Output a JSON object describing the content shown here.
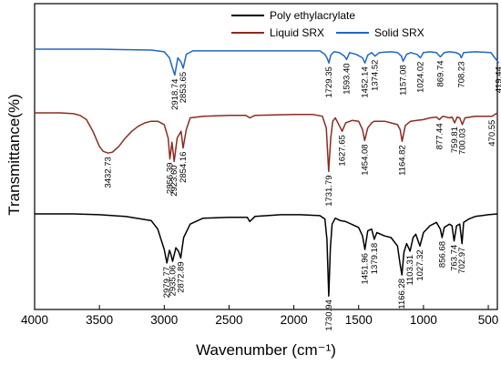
{
  "chart_data": {
    "type": "line",
    "xlabel": "Wavenumber (cm⁻¹)",
    "ylabel": "Transmittance(%)",
    "xlim": [
      4000,
      430
    ],
    "x_reversed": true,
    "x_ticks": [
      4000,
      3500,
      3000,
      2500,
      2000,
      1500,
      1000,
      500
    ],
    "y_tick_labels": false,
    "grid": false,
    "legend_position": "top",
    "series": [
      {
        "name": "Poly ethylacrylate",
        "color": "#000000",
        "x": [
          4000,
          3700,
          3500,
          3300,
          3100,
          3050,
          3000,
          2979.77,
          2960,
          2950,
          2935.06,
          2910,
          2890,
          2872.89,
          2850,
          2800,
          2700,
          2500,
          2360,
          2340,
          2300,
          2100,
          1950,
          1800,
          1760,
          1745,
          1730.94,
          1718,
          1705,
          1680,
          1640,
          1600,
          1500,
          1470,
          1451.96,
          1430,
          1400,
          1379.18,
          1360,
          1300,
          1250,
          1200,
          1180,
          1166.28,
          1150,
          1130,
          1103.31,
          1080,
          1060,
          1027.32,
          1000,
          950,
          900,
          870,
          856.68,
          840,
          800,
          780,
          763.74,
          745,
          720,
          702.97,
          690,
          650,
          600,
          550,
          500,
          430
        ],
        "y": [
          0,
          0,
          1,
          3,
          8,
          18,
          42,
          58,
          43,
          47,
          56,
          40,
          44,
          52,
          28,
          12,
          5,
          4,
          4,
          9,
          3,
          1,
          1,
          2,
          6,
          30,
          97,
          40,
          12,
          5,
          8,
          9,
          16,
          26,
          42,
          20,
          18,
          30,
          22,
          26,
          28,
          38,
          60,
          72,
          45,
          35,
          44,
          28,
          24,
          38,
          22,
          14,
          10,
          18,
          28,
          16,
          12,
          14,
          32,
          14,
          12,
          35,
          10,
          6,
          3,
          2,
          1,
          0
        ],
        "labels": [
          {
            "x": 2979.77,
            "text": "2979.77"
          },
          {
            "x": 2935.06,
            "text": "2935.06"
          },
          {
            "x": 2872.89,
            "text": "2872.89"
          },
          {
            "x": 1730.94,
            "text": "1730.94"
          },
          {
            "x": 1451.96,
            "text": "1451.96"
          },
          {
            "x": 1379.18,
            "text": "1379.18"
          },
          {
            "x": 1166.28,
            "text": "1166.28"
          },
          {
            "x": 1103.31,
            "text": "1103.31"
          },
          {
            "x": 1027.32,
            "text": "1027.32"
          },
          {
            "x": 856.68,
            "text": "856.68"
          },
          {
            "x": 763.74,
            "text": "763.74"
          },
          {
            "x": 702.97,
            "text": "702.97"
          }
        ]
      },
      {
        "name": "Liquid SRX",
        "color": "#8b2c22",
        "x": [
          4000,
          3800,
          3700,
          3650,
          3600,
          3550,
          3500,
          3470,
          3432.73,
          3400,
          3350,
          3300,
          3250,
          3200,
          3150,
          3100,
          3050,
          3000,
          2970,
          2956.39,
          2940,
          2923.6,
          2900,
          2870,
          2854.16,
          2830,
          2800,
          2700,
          2500,
          2370,
          2340,
          2300,
          2000,
          1850,
          1780,
          1750,
          1731.79,
          1715,
          1700,
          1680,
          1650,
          1627.65,
          1600,
          1550,
          1500,
          1470,
          1454.08,
          1430,
          1400,
          1380,
          1300,
          1250,
          1200,
          1180,
          1164.82,
          1140,
          1100,
          1050,
          1000,
          950,
          900,
          877.44,
          850,
          800,
          780,
          759.81,
          740,
          720,
          700.03,
          680,
          600,
          500,
          470.55,
          430
        ],
        "y": [
          0,
          0,
          1,
          3,
          8,
          22,
          40,
          46,
          48,
          47,
          40,
          30,
          22,
          16,
          12,
          10,
          10,
          14,
          30,
          55,
          35,
          58,
          30,
          22,
          42,
          20,
          6,
          4,
          3,
          3,
          6,
          3,
          2,
          2,
          4,
          18,
          70,
          30,
          10,
          6,
          15,
          22,
          12,
          9,
          10,
          20,
          33,
          18,
          12,
          10,
          10,
          12,
          14,
          20,
          34,
          15,
          10,
          9,
          8,
          6,
          5,
          8,
          4,
          6,
          5,
          12,
          5,
          6,
          14,
          6,
          4,
          4,
          4,
          0
        ],
        "labels": [
          {
            "x": 3432.73,
            "text": "3432.73"
          },
          {
            "x": 2956.39,
            "text": "2956.39"
          },
          {
            "x": 2923.6,
            "text": "2923.60"
          },
          {
            "x": 2854.16,
            "text": "2854.16"
          },
          {
            "x": 1731.79,
            "text": "1731.79"
          },
          {
            "x": 1627.65,
            "text": "1627.65"
          },
          {
            "x": 1454.08,
            "text": "1454.08"
          },
          {
            "x": 1164.82,
            "text": "1164.82"
          },
          {
            "x": 877.44,
            "text": "877.44"
          },
          {
            "x": 759.81,
            "text": "759.81"
          },
          {
            "x": 700.03,
            "text": "700.03"
          },
          {
            "x": 470.55,
            "text": "470.55"
          }
        ]
      },
      {
        "name": "Solid SRX",
        "color": "#2166c4",
        "x": [
          4000,
          3500,
          3100,
          3000,
          2960,
          2940,
          2918.74,
          2895,
          2870,
          2853.65,
          2830,
          2780,
          2500,
          2000,
          1800,
          1760,
          1745,
          1729.35,
          1715,
          1690,
          1650,
          1610,
          1593.4,
          1570,
          1520,
          1470,
          1452.14,
          1430,
          1400,
          1374.52,
          1340,
          1250,
          1200,
          1170,
          1157.08,
          1130,
          1100,
          1050,
          1024.02,
          1000,
          950,
          900,
          869.74,
          840,
          800,
          750,
          720,
          708.23,
          690,
          600,
          480,
          450,
          419.44
        ],
        "y": [
          0,
          0,
          1,
          3,
          10,
          20,
          30,
          10,
          15,
          22,
          6,
          2,
          2,
          2,
          2,
          6,
          10,
          16,
          7,
          3,
          4,
          8,
          12,
          4,
          6,
          10,
          16,
          7,
          4,
          8,
          4,
          3,
          4,
          8,
          14,
          6,
          4,
          6,
          10,
          4,
          3,
          4,
          9,
          4,
          3,
          4,
          6,
          10,
          4,
          3,
          4,
          10,
          16
        ]
      }
    ],
    "solid_labels": [
      {
        "x": 2918.74,
        "text": "2918.74"
      },
      {
        "x": 2853.65,
        "text": "2853.65"
      },
      {
        "x": 1729.35,
        "text": "1729.35"
      },
      {
        "x": 1593.4,
        "text": "1593.40"
      },
      {
        "x": 1452.14,
        "text": "1452.14"
      },
      {
        "x": 1374.52,
        "text": "1374.52"
      },
      {
        "x": 1157.08,
        "text": "1157.08"
      },
      {
        "x": 1024.02,
        "text": "1024.02"
      },
      {
        "x": 869.74,
        "text": "869.74"
      },
      {
        "x": 708.23,
        "text": "708.23"
      },
      {
        "x": 419.44,
        "text": "419.44"
      }
    ]
  }
}
